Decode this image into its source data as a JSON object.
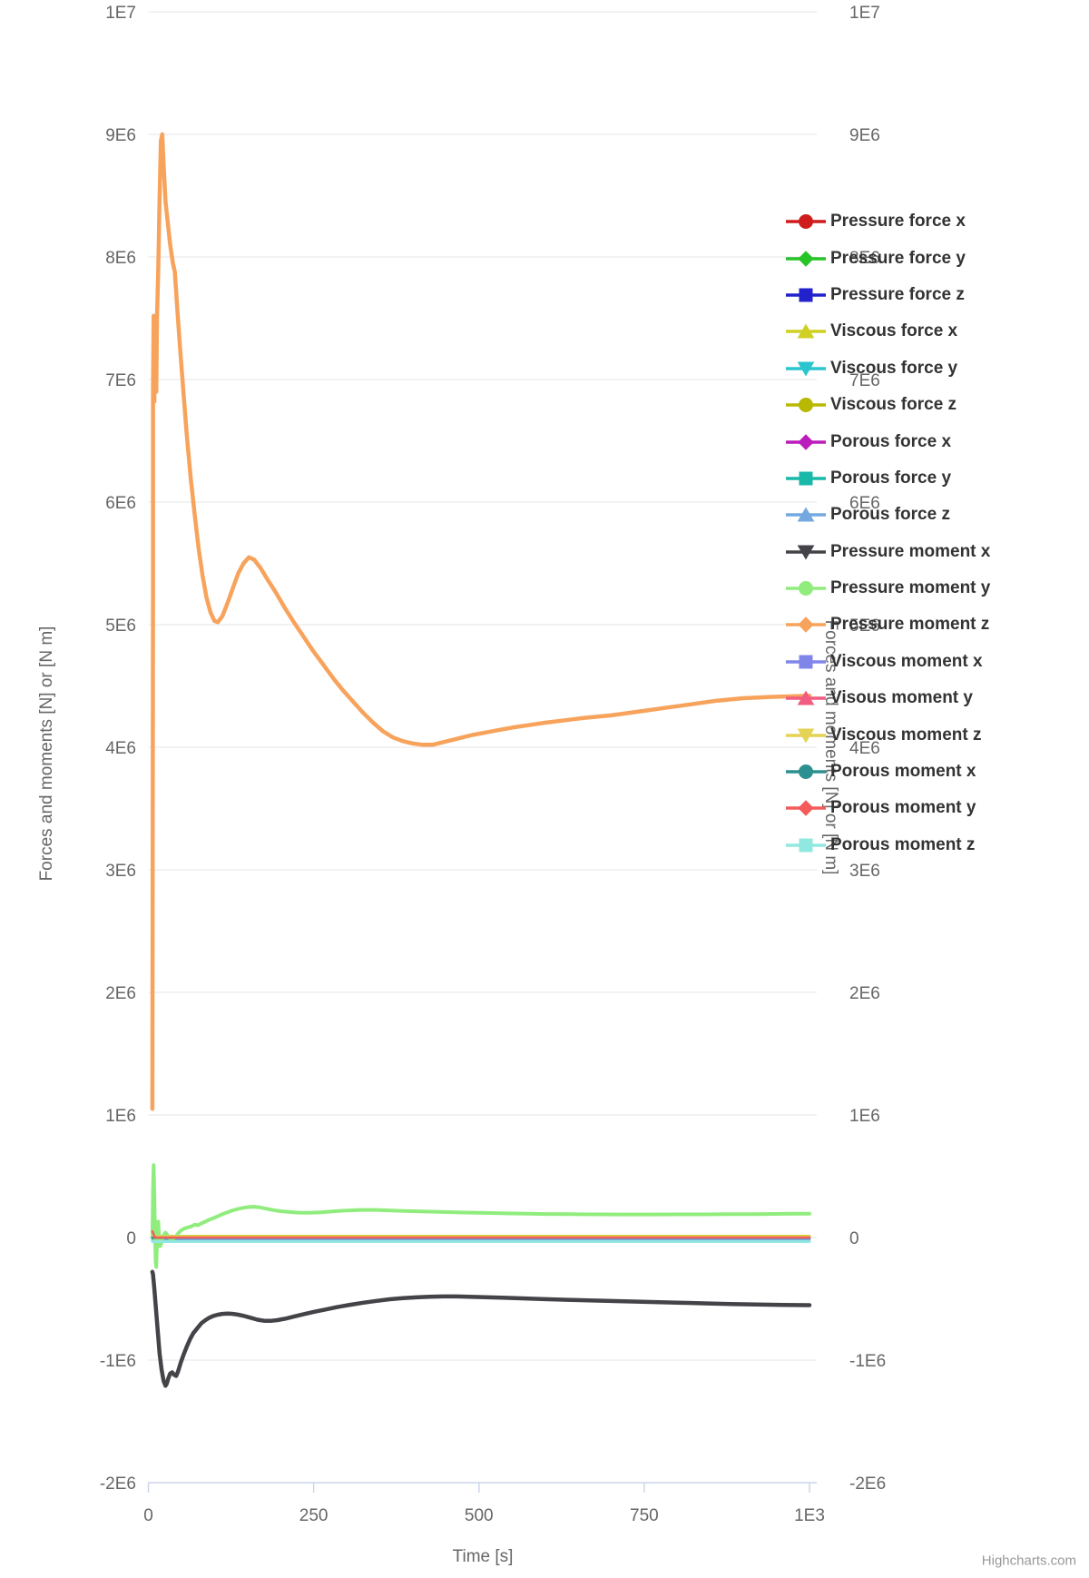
{
  "credits": {
    "label": "Highcharts.com"
  },
  "chart_data": {
    "type": "line",
    "title": "",
    "xlabel": "Time [s]",
    "ylabel": "Forces and moments [N] or [N m]",
    "xlim": [
      0,
      1000
    ],
    "ylim_E6": [
      -2,
      10
    ],
    "grid": true,
    "legend_position": "right",
    "value_unit": "values in points_E6 are in units of 1E6 N or 1E6 N m",
    "x_ticks": [
      [
        "0",
        0
      ],
      [
        "250",
        250
      ],
      [
        "500",
        500
      ],
      [
        "750",
        750
      ],
      [
        "1E3",
        1000
      ]
    ],
    "y_ticks": [
      [
        "1E7",
        10
      ],
      [
        "9E6",
        9
      ],
      [
        "8E6",
        8
      ],
      [
        "7E6",
        7
      ],
      [
        "6E6",
        6
      ],
      [
        "5E6",
        5
      ],
      [
        "4E6",
        4
      ],
      [
        "3E6",
        3
      ],
      [
        "2E6",
        2
      ],
      [
        "1E6",
        1
      ],
      [
        "0",
        0
      ],
      [
        "-1E6",
        -1
      ],
      [
        "-2E6",
        -2
      ]
    ],
    "colors": {
      "grid": "#e6e6e6",
      "axis_line": "#ccd6eb",
      "tick_label": "#666666",
      "legend_text": "#333333"
    },
    "series": [
      {
        "name": "Pressure force x",
        "color": "#cf1d1d",
        "shape": "circle",
        "width": 2.5,
        "points_E6": [
          [
            6,
            0.004
          ],
          [
            1000,
            0.004
          ]
        ]
      },
      {
        "name": "Pressure force y",
        "color": "#27c427",
        "shape": "diamond",
        "width": 2.5,
        "points_E6": [
          [
            6,
            0.0
          ],
          [
            1000,
            0.0
          ]
        ]
      },
      {
        "name": "Pressure force z",
        "color": "#2222cc",
        "shape": "square",
        "width": 2.5,
        "points_E6": [
          [
            6,
            -0.004
          ],
          [
            1000,
            -0.004
          ]
        ]
      },
      {
        "name": "Viscous force x",
        "color": "#cfcf24",
        "shape": "triangle",
        "width": 2.5,
        "points_E6": [
          [
            6,
            0.013
          ],
          [
            1000,
            0.013
          ]
        ]
      },
      {
        "name": "Viscous force y",
        "color": "#2cc5cf",
        "shape": "triangle-down",
        "width": 2.5,
        "points_E6": [
          [
            6,
            -0.02
          ],
          [
            1000,
            -0.02
          ]
        ]
      },
      {
        "name": "Viscous force z",
        "color": "#b8b800",
        "shape": "circle",
        "width": 2.5,
        "points_E6": [
          [
            6,
            0.01
          ],
          [
            1000,
            0.01
          ]
        ]
      },
      {
        "name": "Porous force x",
        "color": "#bb1dbb",
        "shape": "diamond",
        "width": 2.5,
        "points_E6": [
          [
            6,
            0.0
          ],
          [
            1000,
            0.0
          ]
        ]
      },
      {
        "name": "Porous force y",
        "color": "#1ab8a8",
        "shape": "square",
        "width": 2.5,
        "points_E6": [
          [
            6,
            -0.006
          ],
          [
            1000,
            -0.006
          ]
        ]
      },
      {
        "name": "Porous force z",
        "color": "#74a8e0",
        "shape": "triangle",
        "width": 2.5,
        "points_E6": [
          [
            6,
            -0.015
          ],
          [
            1000,
            -0.015
          ]
        ]
      },
      {
        "name": "Pressure moment x",
        "color": "#434348",
        "shape": "triangle-down",
        "width": 4.5,
        "points_E6": [
          [
            6,
            -0.28
          ],
          [
            7,
            -0.3
          ],
          [
            9,
            -0.42
          ],
          [
            11,
            -0.55
          ],
          [
            14,
            -0.75
          ],
          [
            17,
            -0.95
          ],
          [
            20,
            -1.08
          ],
          [
            23,
            -1.17
          ],
          [
            26,
            -1.21
          ],
          [
            28,
            -1.19
          ],
          [
            30,
            -1.15
          ],
          [
            33,
            -1.11
          ],
          [
            36,
            -1.1
          ],
          [
            39,
            -1.12
          ],
          [
            42,
            -1.13
          ],
          [
            45,
            -1.09
          ],
          [
            49,
            -1.02
          ],
          [
            53,
            -0.96
          ],
          [
            58,
            -0.89
          ],
          [
            63,
            -0.83
          ],
          [
            68,
            -0.78
          ],
          [
            74,
            -0.74
          ],
          [
            80,
            -0.7
          ],
          [
            86,
            -0.675
          ],
          [
            92,
            -0.655
          ],
          [
            98,
            -0.64
          ],
          [
            105,
            -0.63
          ],
          [
            112,
            -0.623
          ],
          [
            120,
            -0.62
          ],
          [
            128,
            -0.623
          ],
          [
            136,
            -0.63
          ],
          [
            145,
            -0.64
          ],
          [
            155,
            -0.655
          ],
          [
            165,
            -0.67
          ],
          [
            175,
            -0.679
          ],
          [
            185,
            -0.68
          ],
          [
            195,
            -0.674
          ],
          [
            207,
            -0.662
          ],
          [
            220,
            -0.645
          ],
          [
            235,
            -0.625
          ],
          [
            250,
            -0.607
          ],
          [
            267,
            -0.588
          ],
          [
            285,
            -0.568
          ],
          [
            305,
            -0.549
          ],
          [
            325,
            -0.532
          ],
          [
            345,
            -0.517
          ],
          [
            365,
            -0.504
          ],
          [
            385,
            -0.494
          ],
          [
            405,
            -0.488
          ],
          [
            425,
            -0.483
          ],
          [
            445,
            -0.481
          ],
          [
            465,
            -0.481
          ],
          [
            485,
            -0.483
          ],
          [
            510,
            -0.487
          ],
          [
            540,
            -0.492
          ],
          [
            570,
            -0.497
          ],
          [
            600,
            -0.503
          ],
          [
            640,
            -0.509
          ],
          [
            680,
            -0.515
          ],
          [
            720,
            -0.521
          ],
          [
            760,
            -0.526
          ],
          [
            800,
            -0.531
          ],
          [
            840,
            -0.537
          ],
          [
            880,
            -0.542
          ],
          [
            920,
            -0.546
          ],
          [
            960,
            -0.55
          ],
          [
            1000,
            -0.552
          ]
        ]
      },
      {
        "name": "Pressure moment y",
        "color": "#90ed7d",
        "shape": "circle",
        "width": 4,
        "points_E6": [
          [
            6,
            0.0
          ],
          [
            7,
            0.4
          ],
          [
            8,
            0.59
          ],
          [
            9,
            0.35
          ],
          [
            10,
            0.02
          ],
          [
            11,
            -0.2
          ],
          [
            12,
            -0.24
          ],
          [
            13,
            -0.05
          ],
          [
            14,
            0.1
          ],
          [
            15,
            0.13
          ],
          [
            16,
            0.02
          ],
          [
            18,
            -0.07
          ],
          [
            20,
            -0.04
          ],
          [
            23,
            0.02
          ],
          [
            26,
            0.04
          ],
          [
            30,
            0.01
          ],
          [
            34,
            -0.02
          ],
          [
            38,
            -0.01
          ],
          [
            42,
            0.01
          ],
          [
            46,
            0.04
          ],
          [
            50,
            0.06
          ],
          [
            55,
            0.075
          ],
          [
            60,
            0.083
          ],
          [
            65,
            0.09
          ],
          [
            70,
            0.105
          ],
          [
            75,
            0.1
          ],
          [
            80,
            0.115
          ],
          [
            86,
            0.13
          ],
          [
            92,
            0.145
          ],
          [
            98,
            0.158
          ],
          [
            105,
            0.173
          ],
          [
            112,
            0.19
          ],
          [
            120,
            0.207
          ],
          [
            128,
            0.222
          ],
          [
            136,
            0.234
          ],
          [
            144,
            0.243
          ],
          [
            152,
            0.249
          ],
          [
            160,
            0.251
          ],
          [
            168,
            0.247
          ],
          [
            176,
            0.238
          ],
          [
            184,
            0.229
          ],
          [
            192,
            0.221
          ],
          [
            200,
            0.215
          ],
          [
            212,
            0.209
          ],
          [
            224,
            0.204
          ],
          [
            236,
            0.202
          ],
          [
            248,
            0.203
          ],
          [
            260,
            0.206
          ],
          [
            274,
            0.211
          ],
          [
            288,
            0.216
          ],
          [
            302,
            0.221
          ],
          [
            316,
            0.224
          ],
          [
            330,
            0.226
          ],
          [
            344,
            0.225
          ],
          [
            358,
            0.222
          ],
          [
            372,
            0.219
          ],
          [
            386,
            0.217
          ],
          [
            400,
            0.215
          ],
          [
            420,
            0.212
          ],
          [
            440,
            0.209
          ],
          [
            460,
            0.207
          ],
          [
            480,
            0.204
          ],
          [
            500,
            0.202
          ],
          [
            525,
            0.199
          ],
          [
            550,
            0.196
          ],
          [
            575,
            0.194
          ],
          [
            600,
            0.192
          ],
          [
            640,
            0.19
          ],
          [
            680,
            0.189
          ],
          [
            720,
            0.188
          ],
          [
            760,
            0.188
          ],
          [
            800,
            0.189
          ],
          [
            840,
            0.189
          ],
          [
            880,
            0.19
          ],
          [
            920,
            0.191
          ],
          [
            960,
            0.193
          ],
          [
            1000,
            0.195
          ]
        ]
      },
      {
        "name": "Pressure moment z",
        "color": "#f7a35c",
        "shape": "diamond",
        "width": 4.5,
        "points_E6": [
          [
            6,
            1.05
          ],
          [
            7,
            5.2
          ],
          [
            7,
            6.9
          ],
          [
            8,
            7.52
          ],
          [
            9,
            6.82
          ],
          [
            10,
            7.5
          ],
          [
            11,
            7.2
          ],
          [
            12,
            6.9
          ],
          [
            13,
            7.5
          ],
          [
            15,
            7.9
          ],
          [
            17,
            8.5
          ],
          [
            19,
            8.95
          ],
          [
            21,
            9.0
          ],
          [
            23,
            8.75
          ],
          [
            26,
            8.45
          ],
          [
            29,
            8.3
          ],
          [
            33,
            8.1
          ],
          [
            37,
            7.95
          ],
          [
            40,
            7.88
          ],
          [
            44,
            7.55
          ],
          [
            48,
            7.25
          ],
          [
            53,
            6.9
          ],
          [
            58,
            6.55
          ],
          [
            64,
            6.2
          ],
          [
            70,
            5.9
          ],
          [
            76,
            5.62
          ],
          [
            82,
            5.4
          ],
          [
            88,
            5.22
          ],
          [
            94,
            5.1
          ],
          [
            100,
            5.03
          ],
          [
            105,
            5.02
          ],
          [
            112,
            5.07
          ],
          [
            120,
            5.18
          ],
          [
            128,
            5.3
          ],
          [
            136,
            5.42
          ],
          [
            144,
            5.5
          ],
          [
            152,
            5.55
          ],
          [
            160,
            5.53
          ],
          [
            170,
            5.46
          ],
          [
            180,
            5.37
          ],
          [
            192,
            5.27
          ],
          [
            205,
            5.15
          ],
          [
            220,
            5.02
          ],
          [
            235,
            4.9
          ],
          [
            250,
            4.78
          ],
          [
            265,
            4.67
          ],
          [
            280,
            4.56
          ],
          [
            295,
            4.46
          ],
          [
            310,
            4.37
          ],
          [
            325,
            4.28
          ],
          [
            340,
            4.2
          ],
          [
            355,
            4.13
          ],
          [
            370,
            4.08
          ],
          [
            385,
            4.05
          ],
          [
            400,
            4.03
          ],
          [
            415,
            4.02
          ],
          [
            430,
            4.02
          ],
          [
            445,
            4.04
          ],
          [
            460,
            4.06
          ],
          [
            475,
            4.08
          ],
          [
            490,
            4.1
          ],
          [
            510,
            4.12
          ],
          [
            530,
            4.14
          ],
          [
            550,
            4.16
          ],
          [
            575,
            4.18
          ],
          [
            600,
            4.2
          ],
          [
            630,
            4.22
          ],
          [
            660,
            4.24
          ],
          [
            700,
            4.26
          ],
          [
            740,
            4.29
          ],
          [
            780,
            4.32
          ],
          [
            820,
            4.35
          ],
          [
            860,
            4.38
          ],
          [
            900,
            4.4
          ],
          [
            940,
            4.41
          ],
          [
            1000,
            4.42
          ]
        ]
      },
      {
        "name": "Viscous moment x",
        "color": "#8085e9",
        "shape": "square",
        "width": 2.5,
        "points_E6": [
          [
            6,
            0.0
          ],
          [
            1000,
            0.0
          ]
        ]
      },
      {
        "name": "Visous moment y",
        "color": "#f15c80",
        "shape": "triangle",
        "width": 2.5,
        "points_E6": [
          [
            6,
            0.003
          ],
          [
            1000,
            0.003
          ]
        ]
      },
      {
        "name": "Viscous moment z",
        "color": "#e4d354",
        "shape": "triangle-down",
        "width": 2.5,
        "points_E6": [
          [
            6,
            0.008
          ],
          [
            1000,
            0.008
          ]
        ]
      },
      {
        "name": "Porous moment x",
        "color": "#2b908f",
        "shape": "circle",
        "width": 2.5,
        "points_E6": [
          [
            6,
            -0.002
          ],
          [
            1000,
            -0.002
          ]
        ]
      },
      {
        "name": "Porous moment y",
        "color": "#f45b5b",
        "shape": "diamond",
        "width": 2.5,
        "points_E6": [
          [
            6,
            0.05
          ],
          [
            10,
            0.0
          ],
          [
            1000,
            0.0
          ]
        ]
      },
      {
        "name": "Porous moment z",
        "color": "#91e8e1",
        "shape": "square",
        "width": 3,
        "points_E6": [
          [
            6,
            -0.033
          ],
          [
            1000,
            -0.033
          ]
        ]
      }
    ]
  }
}
